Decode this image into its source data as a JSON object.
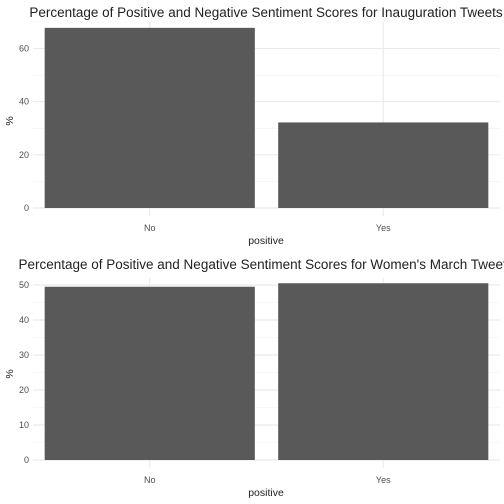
{
  "chart_data": [
    {
      "type": "bar",
      "title": "Percentage of Positive and Negative Sentiment Scores for Inauguration Tweets",
      "xlabel": "positive",
      "ylabel": "%",
      "categories": [
        "No",
        "Yes"
      ],
      "values": [
        67.8,
        32.2
      ],
      "ylim": [
        0,
        70
      ],
      "yticks": [
        0,
        20,
        40,
        60
      ],
      "grid": true,
      "bar_color": "#595959"
    },
    {
      "type": "bar",
      "title": "Percentage of Positive and Negative Sentiment Scores for Women's March Tweets",
      "xlabel": "positive",
      "ylabel": "%",
      "categories": [
        "No",
        "Yes"
      ],
      "values": [
        49.5,
        50.5
      ],
      "ylim": [
        0,
        52
      ],
      "yticks": [
        0,
        10,
        20,
        30,
        40,
        50
      ],
      "grid": true,
      "bar_color": "#595959"
    }
  ]
}
